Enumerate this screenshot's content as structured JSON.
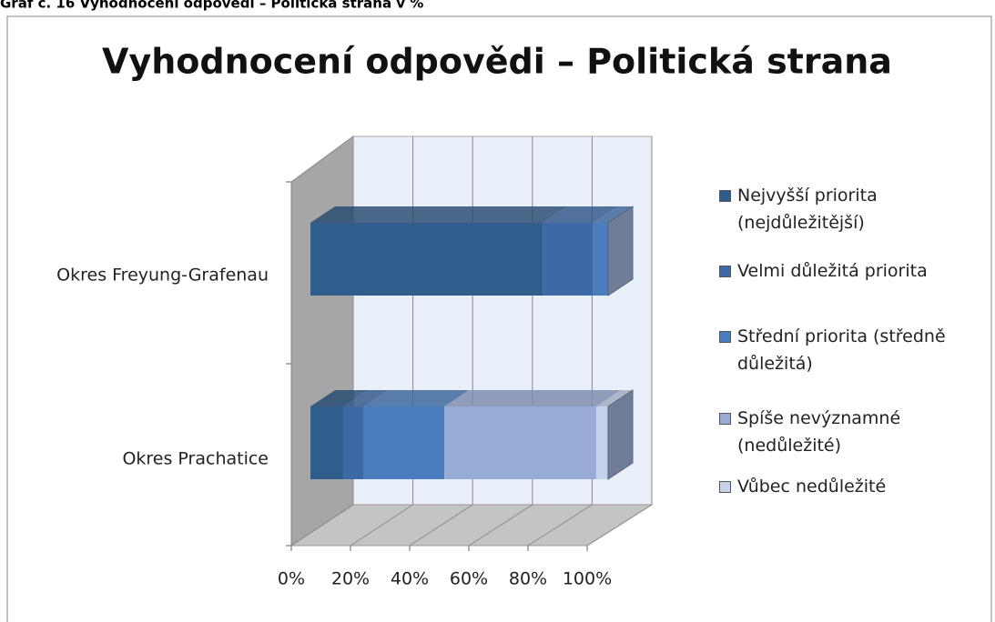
{
  "caption": "Graf č. 16 Vyhodnocení odpovědí – Politická strana v %",
  "chart_data": {
    "type": "bar3d_stacked_horizontal",
    "title": "Vyhodnocení odpovědi – Politická strana",
    "categories": [
      "Okres Freyung-Grafenau",
      "Okres Prachatice"
    ],
    "series": [
      {
        "name": "Nejvyšší priorita (nejdůležitější)",
        "color": "#2f5d8c",
        "values": [
          78,
          11
        ]
      },
      {
        "name": "Velmi důležitá priorita",
        "color": "#3d69a6",
        "values": [
          17,
          7
        ]
      },
      {
        "name": "Střední priorita (středně důležitá)",
        "color": "#4a7dbd",
        "values": [
          5,
          27
        ]
      },
      {
        "name": "Spíše nevýznamné (nedůležité)",
        "color": "#97abd4",
        "values": [
          0,
          51
        ]
      },
      {
        "name": "Vůbec nedůležité",
        "color": "#c6d2ea",
        "values": [
          0,
          4
        ]
      }
    ],
    "xlim": [
      0,
      100
    ],
    "xticks": [
      {
        "value": 0,
        "label": "0%"
      },
      {
        "value": 20,
        "label": "20%"
      },
      {
        "value": 40,
        "label": "40%"
      },
      {
        "value": 60,
        "label": "60%"
      },
      {
        "value": 80,
        "label": "80%"
      },
      {
        "value": 100,
        "label": "100%"
      }
    ],
    "grid": true,
    "legend": "right"
  }
}
